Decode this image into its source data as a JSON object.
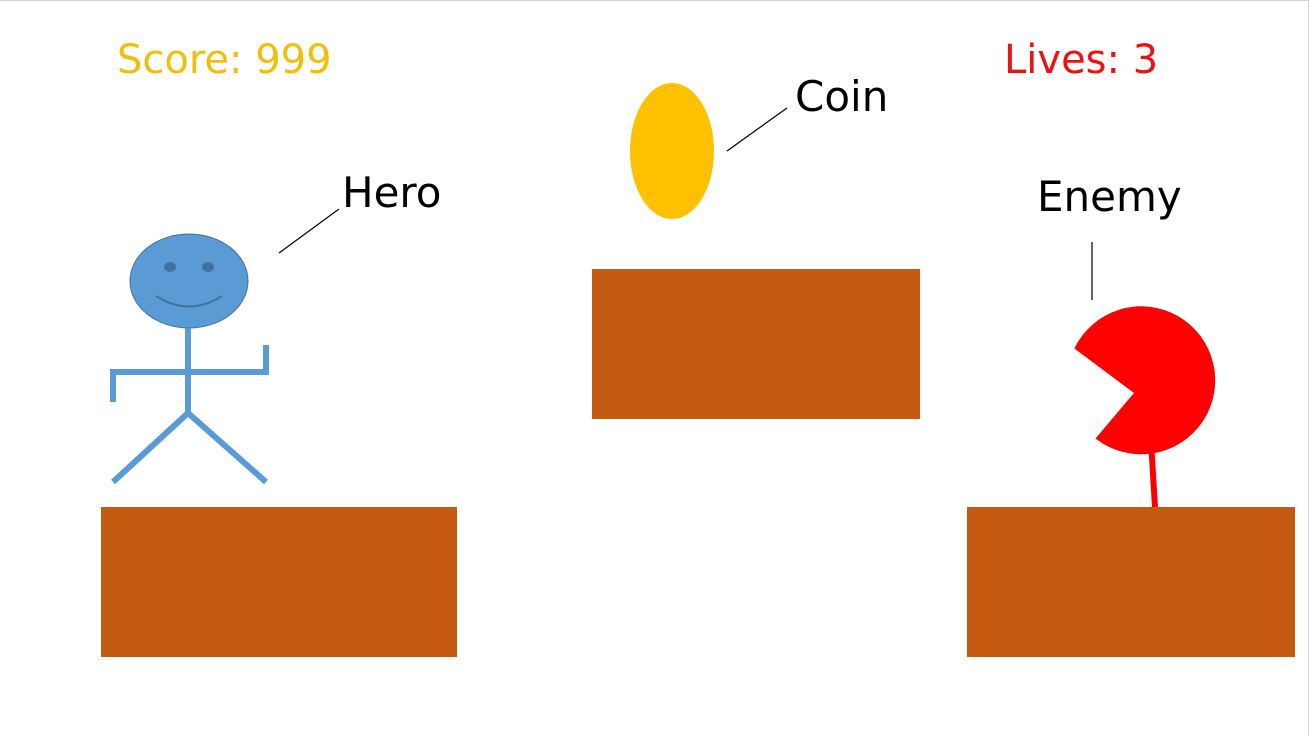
{
  "hud": {
    "score_text": "Score: 999",
    "lives_text": "Lives: 3"
  },
  "labels": {
    "hero": "Hero",
    "coin": "Coin",
    "enemy": "Enemy"
  },
  "colors": {
    "score": "#f2be0c",
    "lives": "#ee1111",
    "hero": "#5b9bd5",
    "hero_features": "#41719c",
    "coin": "#ffc000",
    "enemy": "#ff0000",
    "platform": "#c55a11",
    "label_text": "#000000"
  },
  "icons": {
    "hero": "stick-figure",
    "coin": "coin-oval",
    "enemy": "pacman-shape"
  }
}
